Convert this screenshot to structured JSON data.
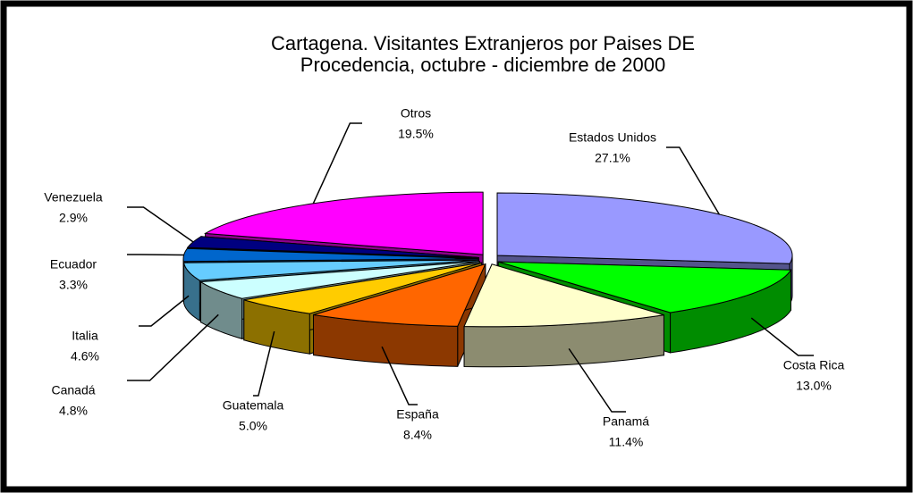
{
  "chart_data": {
    "type": "pie",
    "title": [
      "Cartagena. Visitantes Extranjeros por Paises DE",
      "Procedencia,  octubre - diciembre de 2000"
    ],
    "categories": [
      "Estados Unidos",
      "Costa Rica",
      "Panamá",
      "España",
      "Guatemala",
      "Canadá",
      "Italia",
      "Ecuador",
      "Venezuela",
      "Otros"
    ],
    "values": [
      27.1,
      13.0,
      11.4,
      8.4,
      5.0,
      4.8,
      4.6,
      3.3,
      2.9,
      19.5
    ],
    "value_labels": [
      "27.1%",
      "13.0%",
      "11.4%",
      "8.4%",
      "5.0%",
      "4.8%",
      "4.6%",
      "3.3%",
      "2.9%",
      "19.5%"
    ],
    "colors": [
      "#9999ff",
      "#00ff00",
      "#ffffcc",
      "#ff6600",
      "#ffcc00",
      "#ccffff",
      "#66ccff",
      "#0066cc",
      "#000080",
      "#ff00ff"
    ]
  }
}
